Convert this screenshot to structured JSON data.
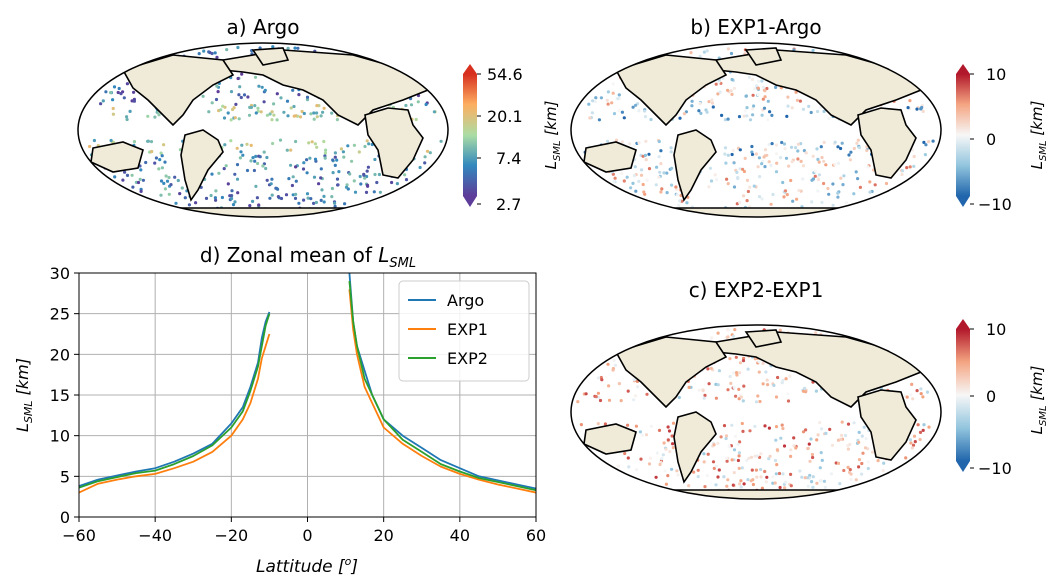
{
  "panels": {
    "a": {
      "title": "a) Argo",
      "cbar_label": "L_SML [km]",
      "cbar_ticks": [
        "54.6",
        "20.1",
        "7.4",
        "2.7"
      ],
      "cbar_colors": [
        "#d7301f",
        "#fdae61",
        "#abdda4",
        "#3288bd",
        "#5e3c99"
      ]
    },
    "b": {
      "title": "b) EXP1-Argo",
      "cbar_label": "L_SML [km]",
      "cbar_ticks": [
        "10",
        "0",
        "−10"
      ],
      "cbar_colors": [
        "#b2182b",
        "#f4a582",
        "#f7f7f7",
        "#92c5de",
        "#2166ac"
      ]
    },
    "c": {
      "title": "c) EXP2-EXP1",
      "cbar_label": "L_SML [km]",
      "cbar_ticks": [
        "10",
        "0",
        "−10"
      ],
      "cbar_colors": [
        "#b2182b",
        "#f4a582",
        "#f7f7f7",
        "#92c5de",
        "#2166ac"
      ]
    },
    "d": {
      "title": "d) Zonal mean of L_SML"
    }
  },
  "map_colors": {
    "ocean": "#ffffff",
    "land": "#efebd8",
    "coast": "#000000"
  },
  "chart_data": [
    {
      "type": "line",
      "title": "d) Zonal mean of L_SML",
      "xlabel": "Lattitude [o]",
      "ylabel": "L_SML [km]",
      "xlim": [
        -60,
        60
      ],
      "ylim": [
        0,
        30
      ],
      "xticks": [
        -60,
        -40,
        -20,
        0,
        20,
        40,
        60
      ],
      "yticks": [
        0,
        5,
        10,
        15,
        20,
        25,
        30
      ],
      "grid": true,
      "legend_position": "top-right",
      "series": [
        {
          "name": "Argo",
          "color": "#1f77b4",
          "segments": [
            {
              "x": [
                -60,
                -55,
                -50,
                -45,
                -40,
                -35,
                -30,
                -25,
                -20,
                -17,
                -15,
                -13,
                -12,
                -11,
                -10
              ],
              "y": [
                3.8,
                4.6,
                5.1,
                5.6,
                6.0,
                6.8,
                7.8,
                9.0,
                11.5,
                13.5,
                16.0,
                19.0,
                22.0,
                24.0,
                25.2
              ]
            },
            {
              "x": [
                11,
                12,
                13,
                15,
                17,
                20,
                25,
                30,
                35,
                40,
                45,
                50,
                55,
                60
              ],
              "y": [
                30,
                24,
                21,
                18,
                15,
                12,
                10,
                8.5,
                7.0,
                6.0,
                5.0,
                4.5,
                4.0,
                3.5
              ]
            }
          ]
        },
        {
          "name": "EXP1",
          "color": "#ff7f0e",
          "segments": [
            {
              "x": [
                -60,
                -55,
                -50,
                -45,
                -40,
                -35,
                -30,
                -25,
                -20,
                -17,
                -15,
                -13,
                -12,
                -11,
                -10
              ],
              "y": [
                3.0,
                4.1,
                4.6,
                5.0,
                5.3,
                6.0,
                6.8,
                8.0,
                10.0,
                12.0,
                14.0,
                17.0,
                19.5,
                21.0,
                22.5
              ]
            },
            {
              "x": [
                11,
                12,
                13,
                15,
                17,
                20,
                25,
                30,
                35,
                40,
                45,
                50,
                55,
                60
              ],
              "y": [
                28,
                23,
                20,
                16,
                14,
                11,
                9,
                7.5,
                6.2,
                5.3,
                4.6,
                4.0,
                3.5,
                3.0
              ]
            }
          ]
        },
        {
          "name": "EXP2",
          "color": "#2ca02c",
          "segments": [
            {
              "x": [
                -60,
                -55,
                -50,
                -45,
                -40,
                -35,
                -30,
                -25,
                -20,
                -17,
                -15,
                -13,
                -12,
                -11,
                -10
              ],
              "y": [
                3.6,
                4.4,
                4.9,
                5.4,
                5.7,
                6.5,
                7.5,
                8.8,
                11.0,
                13.0,
                15.5,
                18.5,
                21.0,
                23.5,
                25.0
              ]
            },
            {
              "x": [
                11,
                12,
                13,
                15,
                17,
                20,
                25,
                30,
                35,
                40,
                45,
                50,
                55,
                60
              ],
              "y": [
                29,
                24,
                21,
                17,
                15,
                12,
                9.5,
                8.0,
                6.5,
                5.6,
                4.8,
                4.3,
                3.8,
                3.3
              ]
            }
          ]
        }
      ]
    }
  ]
}
